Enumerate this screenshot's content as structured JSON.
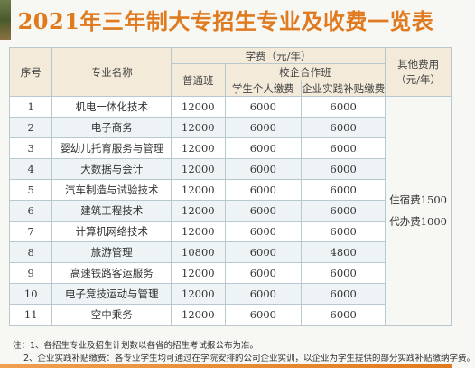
{
  "title": "2021年三年制大专招生专业及收费一览表",
  "headers": {
    "no": "序号",
    "major": "专业名称",
    "tuition": "学费（元/年）",
    "regular": "普通班",
    "coop": "校企合作班",
    "personal": "学生个人缴费",
    "subsidy": "企业实践补贴缴费",
    "other": "其他费用（元/年）"
  },
  "rows": [
    {
      "no": "1",
      "major": "机电一体化技术",
      "regular": "12000",
      "personal": "6000",
      "subsidy": "6000"
    },
    {
      "no": "2",
      "major": "电子商务",
      "regular": "12000",
      "personal": "6000",
      "subsidy": "6000"
    },
    {
      "no": "3",
      "major": "婴幼儿托育服务与管理",
      "regular": "12000",
      "personal": "6000",
      "subsidy": "6000"
    },
    {
      "no": "4",
      "major": "大数据与会计",
      "regular": "12000",
      "personal": "6000",
      "subsidy": "6000"
    },
    {
      "no": "5",
      "major": "汽车制造与试验技术",
      "regular": "12000",
      "personal": "6000",
      "subsidy": "6000"
    },
    {
      "no": "6",
      "major": "建筑工程技术",
      "regular": "12000",
      "personal": "6000",
      "subsidy": "6000"
    },
    {
      "no": "7",
      "major": "计算机网络技术",
      "regular": "12000",
      "personal": "6000",
      "subsidy": "6000"
    },
    {
      "no": "8",
      "major": "旅游管理",
      "regular": "10800",
      "personal": "6000",
      "subsidy": "4800"
    },
    {
      "no": "9",
      "major": "高速铁路客运服务",
      "regular": "12000",
      "personal": "6000",
      "subsidy": "6000"
    },
    {
      "no": "10",
      "major": "电子竞技运动与管理",
      "regular": "12000",
      "personal": "6000",
      "subsidy": "6000"
    },
    {
      "no": "11",
      "major": "空中乘务",
      "regular": "12000",
      "personal": "6000",
      "subsidy": "6000"
    }
  ],
  "other_fees": {
    "accommodation": "住宿费1500",
    "agency": "代办费1000"
  },
  "notes": [
    "注：1、各招生专业及招生计划数以各省的招生考试报公布为准。",
    "2、企业实践补贴缴费：各专业学生均可通过在学院安排的公司企业实训，以企业为学生提供的部分实践补贴缴纳学费。"
  ]
}
